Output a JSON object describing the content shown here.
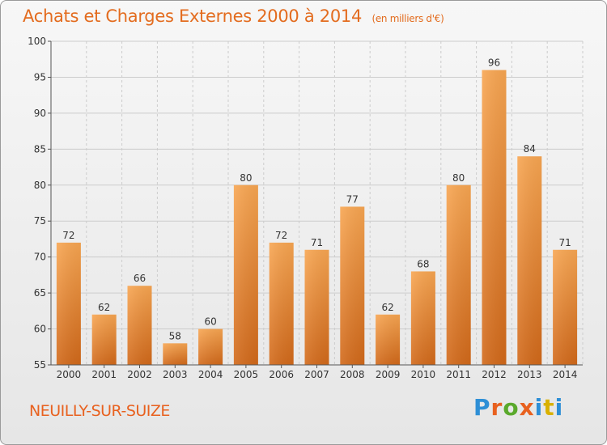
{
  "chart_data": {
    "type": "bar",
    "title": "Achats et Charges Externes 2000 à 2014",
    "subtitle": "(en milliers d'€)",
    "categories": [
      "2000",
      "2001",
      "2002",
      "2003",
      "2004",
      "2005",
      "2006",
      "2007",
      "2008",
      "2009",
      "2010",
      "2011",
      "2012",
      "2013",
      "2014"
    ],
    "values": [
      72,
      62,
      66,
      58,
      60,
      80,
      72,
      71,
      77,
      62,
      68,
      80,
      96,
      84,
      71
    ],
    "ylim": [
      55,
      100
    ],
    "yticks": [
      55,
      60,
      65,
      70,
      75,
      80,
      85,
      90,
      95,
      100
    ],
    "grid": true,
    "bar_color_top": "#f8a652",
    "bar_color_bottom": "#d2691a",
    "grid_color": "#cccccc"
  },
  "footer": {
    "commune": "NEUILLY-SUR-SUIZE",
    "logo_letters": [
      "P",
      "r",
      "o",
      "x",
      "i",
      "t",
      "i"
    ]
  }
}
